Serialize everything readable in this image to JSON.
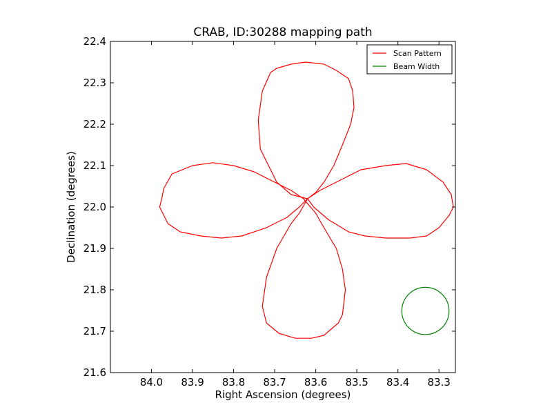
{
  "chart_data": {
    "type": "line",
    "title": "CRAB, ID:30288 mapping path",
    "xlabel": "Right Ascension (degrees)",
    "ylabel": "Declination (degrees)",
    "xlim": [
      84.1,
      83.26
    ],
    "ylim": [
      21.6,
      22.4
    ],
    "x_inverted": true,
    "xticks": [
      "84.0",
      "83.9",
      "83.8",
      "83.7",
      "83.6",
      "83.5",
      "83.4",
      "83.3"
    ],
    "yticks": [
      "21.6",
      "21.7",
      "21.8",
      "21.9",
      "22.0",
      "22.1",
      "22.2",
      "22.3",
      "22.4"
    ],
    "grid": false,
    "legend_position": "top-right",
    "series": [
      {
        "name": "Scan Pattern",
        "color": "#ff0000",
        "points": [
          [
            83.62,
            22.02
          ],
          [
            83.6,
            22.035
          ],
          [
            83.58,
            22.06
          ],
          [
            83.556,
            22.1
          ],
          [
            83.535,
            22.15
          ],
          [
            83.515,
            22.2
          ],
          [
            83.507,
            22.24
          ],
          [
            83.51,
            22.28
          ],
          [
            83.52,
            22.31
          ],
          [
            83.55,
            22.33
          ],
          [
            83.58,
            22.345
          ],
          [
            83.625,
            22.35
          ],
          [
            83.66,
            22.345
          ],
          [
            83.695,
            22.335
          ],
          [
            83.71,
            22.325
          ],
          [
            83.73,
            22.28
          ],
          [
            83.74,
            22.21
          ],
          [
            83.735,
            22.14
          ],
          [
            83.715,
            22.1
          ],
          [
            83.695,
            22.06
          ],
          [
            83.66,
            22.03
          ],
          [
            83.62,
            22.02
          ],
          [
            83.605,
            22.0
          ],
          [
            83.57,
            21.97
          ],
          [
            83.52,
            21.94
          ],
          [
            83.48,
            21.93
          ],
          [
            83.43,
            21.925
          ],
          [
            83.37,
            21.925
          ],
          [
            83.33,
            21.93
          ],
          [
            83.3,
            21.95
          ],
          [
            83.275,
            21.98
          ],
          [
            83.265,
            22.0
          ],
          [
            83.27,
            22.03
          ],
          [
            83.29,
            22.06
          ],
          [
            83.33,
            22.09
          ],
          [
            83.38,
            22.105
          ],
          [
            83.43,
            22.1
          ],
          [
            83.49,
            22.09
          ],
          [
            83.54,
            22.065
          ],
          [
            83.59,
            22.04
          ],
          [
            83.62,
            22.02
          ],
          [
            83.64,
            21.985
          ],
          [
            83.66,
            21.96
          ],
          [
            83.695,
            21.9
          ],
          [
            83.72,
            21.83
          ],
          [
            83.73,
            21.76
          ],
          [
            83.72,
            21.72
          ],
          [
            83.69,
            21.695
          ],
          [
            83.65,
            21.683
          ],
          [
            83.61,
            21.683
          ],
          [
            83.58,
            21.69
          ],
          [
            83.545,
            21.72
          ],
          [
            83.535,
            21.74
          ],
          [
            83.528,
            21.8
          ],
          [
            83.535,
            21.85
          ],
          [
            83.55,
            21.9
          ],
          [
            83.58,
            21.95
          ],
          [
            83.6,
            21.985
          ],
          [
            83.63,
            22.02
          ],
          [
            83.66,
            22.04
          ],
          [
            83.7,
            22.06
          ],
          [
            83.75,
            22.085
          ],
          [
            83.8,
            22.1
          ],
          [
            83.85,
            22.107
          ],
          [
            83.9,
            22.1
          ],
          [
            83.95,
            22.08
          ],
          [
            83.97,
            22.045
          ],
          [
            83.975,
            22.02
          ],
          [
            83.98,
            22.0
          ],
          [
            83.96,
            21.96
          ],
          [
            83.93,
            21.94
          ],
          [
            83.88,
            21.93
          ],
          [
            83.83,
            21.925
          ],
          [
            83.78,
            21.93
          ],
          [
            83.72,
            21.95
          ],
          [
            83.67,
            21.975
          ],
          [
            83.64,
            22.0
          ],
          [
            83.62,
            22.02
          ]
        ]
      },
      {
        "name": "Beam Width",
        "color": "#008000",
        "shape": "circle",
        "center": [
          83.333,
          21.749
        ],
        "radius_dec": 0.057
      }
    ]
  }
}
